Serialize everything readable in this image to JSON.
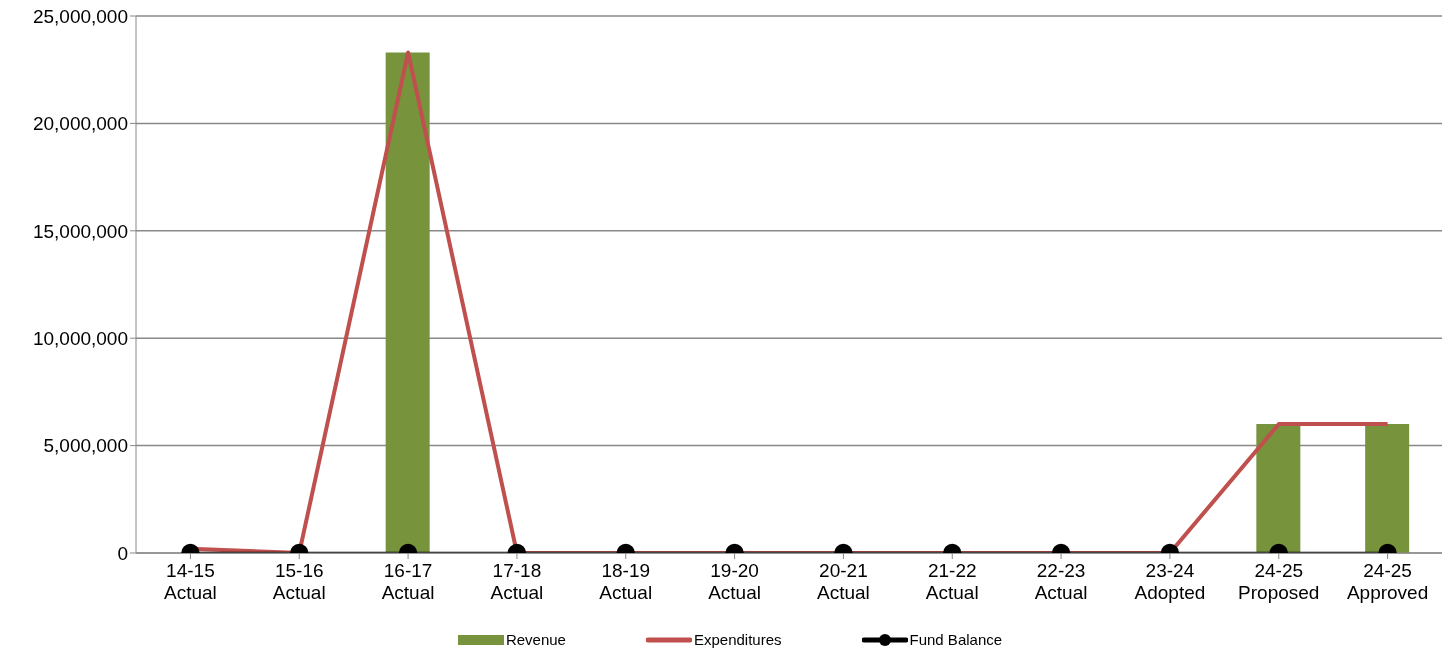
{
  "chart_data": {
    "type": "bar",
    "categories": [
      "14-15\nActual",
      "15-16\nActual",
      "16-17\nActual",
      "17-18\nActual",
      "18-19\nActual",
      "19-20\nActual",
      "20-21\nActual",
      "21-22\nActual",
      "22-23\nActual",
      "23-24\nAdopted",
      "24-25\nProposed",
      "24-25\nApproved"
    ],
    "series": [
      {
        "name": "Revenue",
        "color": "#77933c",
        "values": [
          0,
          0,
          23300000,
          0,
          0,
          0,
          0,
          0,
          0,
          0,
          6000000,
          6000000
        ]
      },
      {
        "name": "Expenditures",
        "type": "line",
        "marker": "none",
        "color": "#c0504d",
        "values": [
          200000,
          0,
          23300000,
          0,
          0,
          0,
          0,
          0,
          0,
          0,
          6000000,
          6000000
        ]
      },
      {
        "name": "Fund Balance",
        "type": "line",
        "marker": "circle",
        "color": "#000000",
        "values": [
          0,
          0,
          0,
          0,
          0,
          0,
          0,
          0,
          0,
          0,
          0,
          0
        ]
      }
    ],
    "ylim": [
      0,
      25000000
    ],
    "yticks": [
      0,
      {
        "value": 5000000,
        "label": "5,000,000"
      },
      {
        "value": 10000000,
        "label": "10,000,000"
      },
      {
        "value": 15000000,
        "label": "15,000,000"
      },
      {
        "value": 20000000,
        "label": "20,000,000"
      },
      {
        "value": 25000000,
        "label": "25,000,000"
      }
    ],
    "grid": "y",
    "legend": "bottom"
  }
}
